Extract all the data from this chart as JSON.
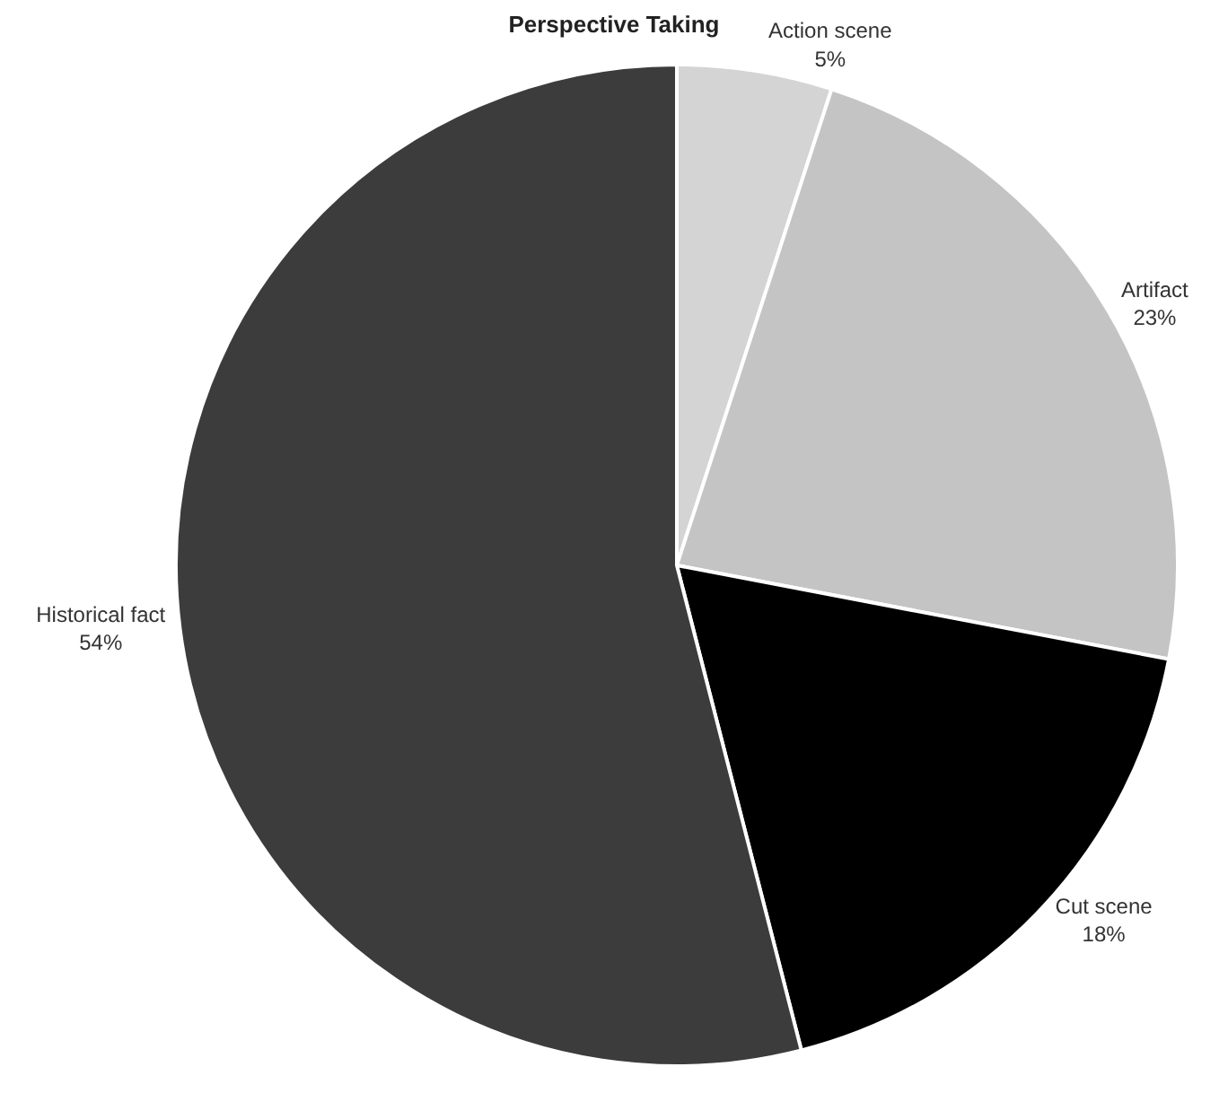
{
  "chart_data": {
    "type": "pie",
    "title": "Perspective Taking",
    "categories": [
      "Action scene",
      "Artifact",
      "Cut scene",
      "Historical fact"
    ],
    "values": [
      5,
      23,
      18,
      54
    ],
    "value_labels": [
      "5%",
      "23%",
      "18%",
      "54%"
    ],
    "colors": [
      "#d4d4d4",
      "#c4c4c4",
      "#000000",
      "#3c3c3c"
    ],
    "legend": false
  }
}
